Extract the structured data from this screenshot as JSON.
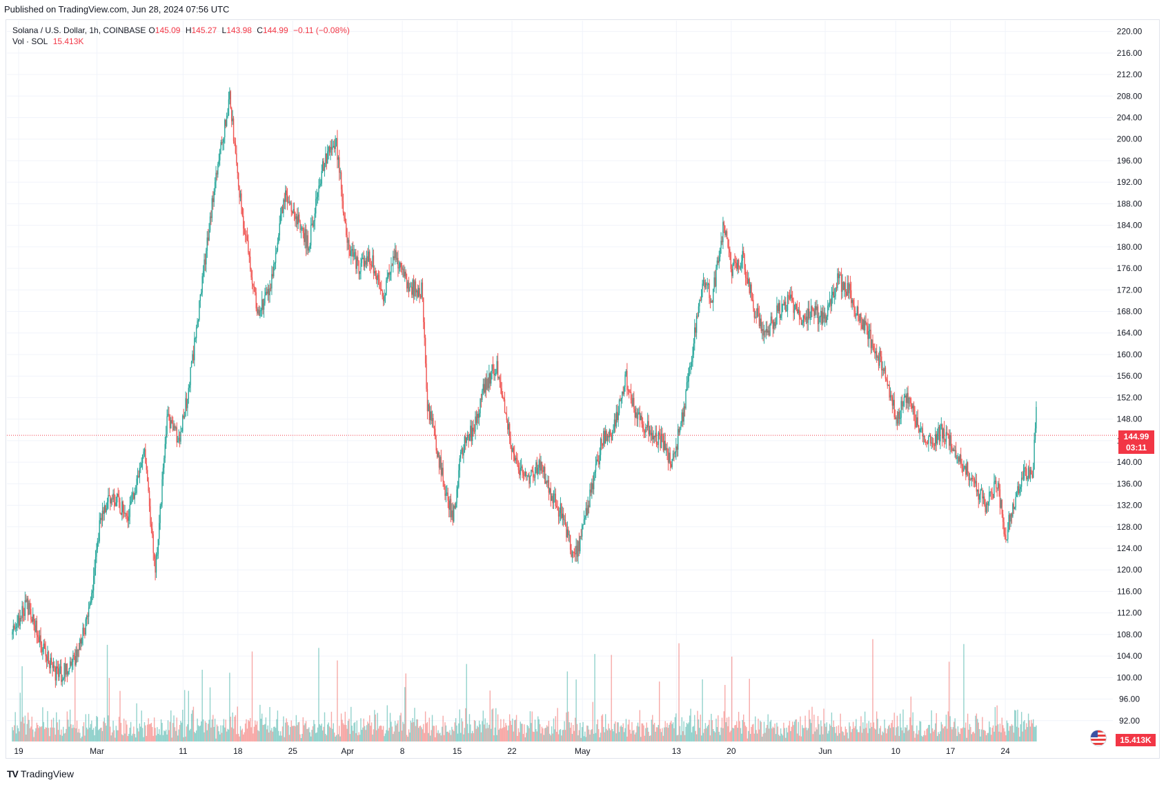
{
  "header": {
    "published": "Published on TradingView.com, Jun 28, 2024 07:56 UTC"
  },
  "legend": {
    "symbol": "Solana / U.S. Dollar, 1h, COINBASE",
    "open_label": "O",
    "open": "145.09",
    "high_label": "H",
    "high": "145.27",
    "low_label": "L",
    "low": "143.98",
    "close_label": "C",
    "close": "144.99",
    "change": "−0.11 (−0.08%)",
    "vol_label": "Vol · SOL",
    "vol_value": "15.413K"
  },
  "price_tag": {
    "price": "144.99",
    "countdown": "03:11"
  },
  "volume_tag": "15.413K",
  "footer": {
    "brand": "TradingView",
    "logo": "TV"
  },
  "colors": {
    "up": "#26a69a",
    "down": "#ef5350",
    "last": "#f23645",
    "grid": "#f0f3fa"
  },
  "chart_data": {
    "type": "candlestick",
    "title": "Solana / U.S. Dollar, 1h, COINBASE",
    "ylim": [
      88,
      222
    ],
    "y_ticks": [
      220,
      216,
      212,
      208,
      204,
      200,
      196,
      192,
      188,
      184,
      180,
      176,
      172,
      168,
      164,
      160,
      156,
      152,
      148,
      144,
      140,
      136,
      132,
      128,
      124,
      120,
      116,
      112,
      108,
      104,
      100,
      96,
      92
    ],
    "x_ticks": [
      {
        "label": "19",
        "day": 0
      },
      {
        "label": "Mar",
        "day": 10
      },
      {
        "label": "11",
        "day": 21
      },
      {
        "label": "18",
        "day": 28
      },
      {
        "label": "25",
        "day": 35
      },
      {
        "label": "Apr",
        "day": 42
      },
      {
        "label": "8",
        "day": 49
      },
      {
        "label": "15",
        "day": 56
      },
      {
        "label": "22",
        "day": 63
      },
      {
        "label": "May",
        "day": 72
      },
      {
        "label": "13",
        "day": 84
      },
      {
        "label": "20",
        "day": 91
      },
      {
        "label": "Jun",
        "day": 103
      },
      {
        "label": "10",
        "day": 112
      },
      {
        "label": "17",
        "day": 119
      },
      {
        "label": "24",
        "day": 126
      }
    ],
    "grid": true,
    "last_price": 144.99,
    "path_day": [
      -0.8,
      1,
      3,
      5,
      7.5,
      9,
      10.5,
      12,
      14,
      16,
      17.5,
      19,
      20.5,
      21.5,
      22.5,
      24,
      25.5,
      27,
      28,
      29,
      30.5,
      32,
      34,
      35.5,
      37,
      39,
      40.5,
      42,
      43.5,
      45,
      46.5,
      48,
      49.5,
      50.5,
      51.5,
      52.2,
      53,
      54.5,
      55.5,
      56.5,
      58,
      59.5,
      61,
      62.5,
      63.5,
      65,
      66.5,
      68,
      69.5,
      70.5,
      71.5,
      73,
      74.5,
      76,
      77.5,
      79,
      80.5,
      82,
      83.5,
      85,
      86.5,
      87.5,
      88.5,
      90,
      91,
      92.5,
      94,
      95.5,
      97,
      98.5,
      100,
      101.5,
      103,
      104.5,
      106,
      107.5,
      108.5,
      109.5,
      110.5,
      112,
      113.5,
      115,
      116.5,
      118,
      119,
      120.5,
      122,
      123.5,
      125,
      126,
      127,
      128.5,
      129.5,
      130
    ],
    "path_price": [
      108,
      114,
      106,
      100,
      104,
      112,
      130,
      134,
      130,
      142,
      120,
      148,
      144,
      152,
      162,
      180,
      196,
      208,
      192,
      182,
      168,
      172,
      190,
      186,
      180,
      196,
      200,
      180,
      176,
      178,
      170,
      178,
      174,
      172,
      172,
      150,
      146,
      134,
      130,
      142,
      146,
      154,
      158,
      146,
      140,
      136,
      140,
      134,
      130,
      124,
      124,
      134,
      144,
      146,
      156,
      148,
      146,
      144,
      140,
      150,
      166,
      174,
      170,
      184,
      176,
      178,
      168,
      164,
      168,
      170,
      166,
      168,
      166,
      174,
      172,
      166,
      164,
      160,
      158,
      148,
      152,
      146,
      144,
      146,
      144,
      140,
      136,
      132,
      136,
      126,
      132,
      138,
      138,
      150,
      144.99
    ],
    "volume_ylim": [
      0,
      20
    ]
  }
}
